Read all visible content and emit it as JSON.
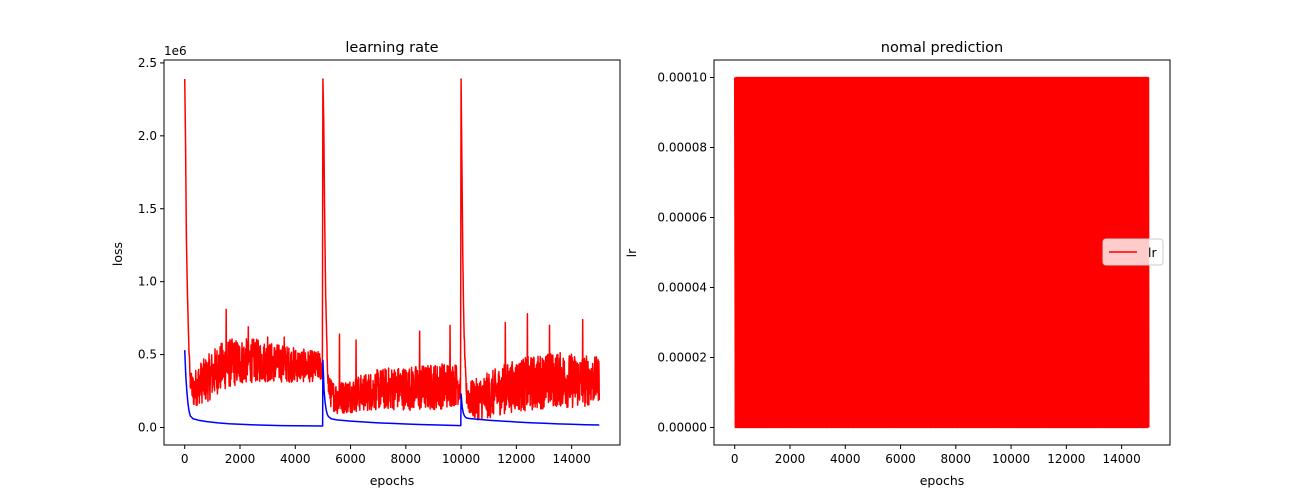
{
  "chart_data": [
    {
      "type": "line",
      "title": "learning rate",
      "xlabel": "epochs",
      "ylabel": "loss",
      "y_offset_text": "1e6",
      "xlim": [
        -750,
        15750
      ],
      "ylim": [
        -120000,
        2520000
      ],
      "xticks": [
        0,
        2000,
        4000,
        6000,
        8000,
        10000,
        12000,
        14000
      ],
      "xtick_labels": [
        "0",
        "2000",
        "4000",
        "6000",
        "8000",
        "10000",
        "12000",
        "14000"
      ],
      "yticks": [
        0,
        500000,
        1000000,
        1500000,
        2000000,
        2500000
      ],
      "ytick_labels": [
        "0.0",
        "0.5",
        "1.0",
        "1.5",
        "2.0",
        "2.5"
      ],
      "grid": false,
      "series": [
        {
          "color": "#ff0000",
          "style": "noisy",
          "x": [
            0,
            30,
            60,
            100,
            150,
            200,
            300,
            500,
            800,
            1200,
            1600,
            2000,
            2500,
            3000,
            3500,
            4000,
            4500,
            4980,
            5000,
            5030,
            5060,
            5100,
            5150,
            5200,
            5300,
            5500,
            6000,
            6500,
            7000,
            7500,
            8000,
            8500,
            9000,
            9500,
            9980,
            10000,
            10030,
            10060,
            10100,
            10150,
            10200,
            10300,
            10500,
            11000,
            11500,
            12000,
            12500,
            13000,
            13500,
            14000,
            14500,
            15000
          ],
          "y": [
            2390000,
            1950000,
            1300000,
            900000,
            550000,
            320000,
            250000,
            300000,
            330000,
            400000,
            440000,
            450000,
            460000,
            450000,
            440000,
            430000,
            420000,
            420000,
            2390000,
            2100000,
            1500000,
            900000,
            500000,
            280000,
            230000,
            200000,
            220000,
            240000,
            260000,
            270000,
            270000,
            270000,
            280000,
            290000,
            300000,
            2390000,
            1800000,
            1200000,
            700000,
            400000,
            230000,
            200000,
            190000,
            220000,
            260000,
            290000,
            300000,
            320000,
            330000,
            320000,
            320000,
            330000
          ],
          "noise": [
            0,
            0,
            0,
            0,
            20000,
            60000,
            120000,
            140000,
            160000,
            170000,
            170000,
            160000,
            150000,
            140000,
            130000,
            120000,
            110000,
            100000,
            0,
            0,
            0,
            20000,
            40000,
            80000,
            100000,
            110000,
            120000,
            130000,
            140000,
            150000,
            150000,
            160000,
            160000,
            160000,
            140000,
            0,
            0,
            0,
            20000,
            40000,
            80000,
            120000,
            140000,
            160000,
            170000,
            180000,
            190000,
            190000,
            190000,
            190000,
            180000,
            150000
          ],
          "spikes": [
            [
              1500,
              810000
            ],
            [
              2300,
              690000
            ],
            [
              3000,
              620000
            ],
            [
              3600,
              620000
            ],
            [
              5600,
              640000
            ],
            [
              6200,
              600000
            ],
            [
              8500,
              660000
            ],
            [
              9600,
              700000
            ],
            [
              11600,
              720000
            ],
            [
              12400,
              780000
            ],
            [
              13200,
              700000
            ],
            [
              14400,
              740000
            ]
          ]
        },
        {
          "color": "#0000ff",
          "style": "smooth",
          "x": [
            0,
            40,
            80,
            120,
            160,
            200,
            300,
            500,
            800,
            1200,
            1600,
            2000,
            2500,
            3000,
            3500,
            4000,
            4500,
            4990,
            5000,
            5040,
            5080,
            5120,
            5160,
            5200,
            5300,
            5500,
            6000,
            6500,
            7000,
            7500,
            8000,
            8500,
            9000,
            9500,
            9990,
            10000,
            10040,
            10080,
            10120,
            10160,
            10200,
            10300,
            10500,
            11000,
            11500,
            12000,
            12500,
            13000,
            13500,
            14000,
            14500,
            15000
          ],
          "y": [
            530000,
            350000,
            240000,
            160000,
            110000,
            80000,
            60000,
            50000,
            40000,
            32000,
            26000,
            22000,
            18000,
            15000,
            13000,
            12000,
            11000,
            10000,
            460000,
            260000,
            170000,
            120000,
            90000,
            75000,
            60000,
            52000,
            44000,
            38000,
            32000,
            28000,
            24000,
            21000,
            18000,
            15000,
            13000,
            230000,
            140000,
            100000,
            80000,
            70000,
            65000,
            62000,
            58000,
            50000,
            44000,
            38000,
            33000,
            29000,
            25000,
            22000,
            19000,
            17000
          ]
        }
      ]
    },
    {
      "type": "line",
      "title": "nomal prediction",
      "xlabel": "epochs",
      "ylabel": "lr",
      "xlim": [
        -750,
        15750
      ],
      "ylim": [
        -5e-06,
        0.000105
      ],
      "xticks": [
        0,
        2000,
        4000,
        6000,
        8000,
        10000,
        12000,
        14000
      ],
      "xtick_labels": [
        "0",
        "2000",
        "4000",
        "6000",
        "8000",
        "10000",
        "12000",
        "14000"
      ],
      "yticks": [
        0,
        2e-05,
        4e-05,
        6e-05,
        8e-05,
        0.0001
      ],
      "ytick_labels": [
        "0.00000",
        "0.00002",
        "0.00004",
        "0.00006",
        "0.00008",
        "0.00010"
      ],
      "grid": false,
      "legend": {
        "placement": "center-right",
        "entries": [
          {
            "label": "lr",
            "color": "#ff0000"
          }
        ]
      },
      "series": [
        {
          "name": "lr",
          "color": "#ff0000",
          "style": "oscillation",
          "x_min": 0,
          "x_max": 15000,
          "y_min": 0,
          "y_max": 0.0001
        }
      ]
    }
  ]
}
